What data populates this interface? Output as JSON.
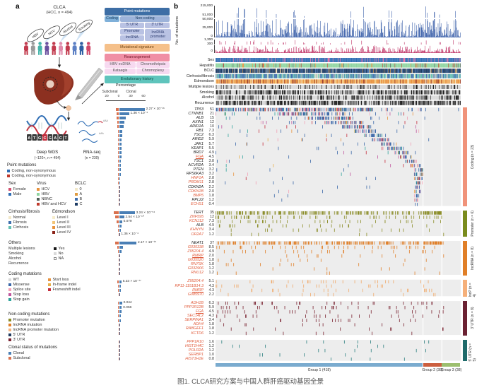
{
  "panel_a": {
    "label": "a",
    "cohort_title": "CLCA",
    "cohort_subtitle": "(HCC, n = 494)",
    "etiologies": [
      "HBV",
      "HCV",
      "Alcohol",
      "Smoking"
    ],
    "people_colors": [
      "#c23b4e",
      "#9a9a9a",
      "#45b5aa",
      "#6a4f9e",
      "#c23b4e",
      "#e08bab",
      "#c23b4e",
      "#5b7fc4",
      "#2e5fa3",
      "#d0486a"
    ],
    "dna_bases": [
      "A",
      "T",
      "G",
      "C",
      "G",
      "A",
      "C",
      "T"
    ],
    "assays": {
      "wgs_label": "Deep WGS",
      "wgs_sub": "(~120×, n = 494)",
      "rna_label": "RNA-seq",
      "rna_sub": "(n = 239)"
    },
    "pipeline": {
      "point_mutations_title": "Point mutations",
      "coding": "Coding",
      "noncoding": "Non-coding",
      "utr5": "5' UTR",
      "utr3": "3' UTR",
      "promoter": "Promoter",
      "lncrna": "lncRNA",
      "lncrna_promoter": "lncRNA promoter",
      "signature": "Mutational signature",
      "rearrangement": "Rearrangement",
      "rearr_items": [
        "HBV ecDNA",
        "Chromothripsis",
        "Kataegis",
        "Chromoplexy"
      ],
      "evolution": "Evolutionary history"
    }
  },
  "legends": {
    "point_mutations": {
      "title": "Point mutations",
      "items": [
        {
          "label": "Coding, non-synonymous",
          "color": "#2e6db4"
        },
        {
          "label": "Coding, non-synonymous",
          "color": "#c0392b"
        }
      ]
    },
    "sex": {
      "title": "Sex",
      "items": [
        {
          "label": "Female",
          "color": "#d34f6e"
        },
        {
          "label": "Male",
          "color": "#2e6db4"
        }
      ]
    },
    "virus": {
      "title": "Virus",
      "items": [
        {
          "label": "HCV",
          "color": "#e8923d"
        },
        {
          "label": "HBV",
          "color": "#8fd4a0"
        },
        {
          "label": "NBNC",
          "color": "#4f5d57"
        },
        {
          "label": "HBV and HCV",
          "color": "#c0392b"
        }
      ]
    },
    "bclc": {
      "title": "BCLC",
      "items": [
        {
          "label": "0",
          "color": "#f2e8c9"
        },
        {
          "label": "A",
          "color": "#df9b3f"
        },
        {
          "label": "B",
          "color": "#3f6fae"
        },
        {
          "label": "C",
          "color": "#1b3a63"
        }
      ]
    },
    "cirrhosis": {
      "title": "Cirrhosis/fibrosis",
      "items": [
        {
          "label": "Normal",
          "color": "#f2e8c9"
        },
        {
          "label": "Fibrosis",
          "color": "#3f6fae"
        },
        {
          "label": "Cirrhosis",
          "color": "#64c0b2"
        }
      ]
    },
    "edmondson": {
      "title": "Edmondson",
      "items": [
        {
          "label": "Level I",
          "color": "#f5eccb"
        },
        {
          "label": "Level II",
          "color": "#f3c577"
        },
        {
          "label": "Level III",
          "color": "#e8923d"
        },
        {
          "label": "Level IV",
          "color": "#8c2318"
        }
      ]
    },
    "others": {
      "title": "Others",
      "rows": [
        "Multiple lesions",
        "Smoking",
        "Alcohol",
        "Recurrence"
      ],
      "values": [
        {
          "label": "Yes",
          "color": "#1a1a1a"
        },
        {
          "label": "No",
          "color": "#d9d9d9"
        },
        {
          "label": "NA",
          "color": "#ffffff"
        }
      ]
    },
    "coding_mutations": {
      "title": "Coding mutations",
      "col1": [
        {
          "label": "WT",
          "color": "#d9d9d9"
        },
        {
          "label": "Missense",
          "color": "#3a67a8"
        },
        {
          "label": "Splice site",
          "color": "#f2a0b5"
        },
        {
          "label": "Stop loss",
          "color": "#c0569e"
        },
        {
          "label": "Stop gain",
          "color": "#2fa39b"
        }
      ],
      "col2": [
        {
          "label": "Start loss",
          "color": "#e8923d"
        },
        {
          "label": "In-frame indel",
          "color": "#e8b04a"
        },
        {
          "label": "Frameshift indel",
          "color": "#c42d3c"
        }
      ]
    },
    "noncoding_mutations": {
      "title": "Non-coding mutations",
      "items": [
        {
          "label": "Promoter mutation",
          "color": "#8a8c26"
        },
        {
          "label": "lncRNA mutation",
          "color": "#e07f28"
        },
        {
          "label": "lncRNA promoter mutation",
          "color": "#f2b380"
        },
        {
          "label": "5' UTR",
          "color": "#1f3a5f"
        },
        {
          "label": "3' UTR",
          "color": "#7a2230"
        }
      ]
    },
    "clonal_status": {
      "title": "Clonal status of mutations",
      "items": [
        {
          "label": "Clonal",
          "color": "#4a7fb5"
        },
        {
          "label": "Subclonal",
          "color": "#d9714e"
        }
      ]
    }
  },
  "clonal_chart": {
    "title": "Percentage",
    "left_label": "Subclonal",
    "right_label": "Clonal",
    "ticks": [
      "20",
      "0",
      "30",
      "60"
    ],
    "clonal_color": "#4a7fb5",
    "subclonal_color": "#d9714e"
  },
  "panel_b": {
    "label": "b",
    "y_axis_title": "No. of mutations",
    "snv_axis": [
      "215,000",
      "51,000",
      "50,000",
      "25,000",
      "0"
    ],
    "indel_axis": [
      "1,300",
      "300",
      "0"
    ],
    "snv_color": "#2a52a2",
    "indel_color": "#b81d56",
    "n_samples": 494,
    "tracks": [
      {
        "label": "Sex",
        "palette": [
          [
            "#2e6db4",
            0.85
          ],
          [
            "#e86ca4",
            0.15
          ]
        ]
      },
      {
        "label": "Hepatitis",
        "palette": [
          [
            "#8fd4a0",
            0.86
          ],
          [
            "#e8923d",
            0.05
          ],
          [
            "#4f5d57",
            0.04
          ],
          [
            "#c0392b",
            0.05
          ]
        ]
      },
      {
        "label": "BCLC",
        "palette": [
          [
            "#1b3a63",
            0.68
          ],
          [
            "#3f6fae",
            0.14
          ],
          [
            "#df9b3f",
            0.09
          ],
          [
            "#f2e8c9",
            0.09
          ]
        ]
      },
      {
        "label": "Cirrhosis/fibrosis",
        "palette": [
          [
            "#64c0b2",
            0.42
          ],
          [
            "#3f6fae",
            0.44
          ],
          [
            "#f2e8c9",
            0.14
          ]
        ]
      },
      {
        "label": "Edmondson",
        "palette": [
          [
            "#f5eccb",
            0.05
          ],
          [
            "#f3c577",
            0.25
          ],
          [
            "#e8923d",
            0.58
          ],
          [
            "#8c2318",
            0.12
          ]
        ]
      },
      {
        "label": "Multiple lesions",
        "palette": [
          [
            "#1a1a1a",
            0.25
          ],
          [
            "#d9d9d9",
            0.75
          ]
        ]
      },
      {
        "label": "Smoking",
        "palette": [
          [
            "#1a1a1a",
            0.44
          ],
          [
            "#d9d9d9",
            0.56
          ]
        ]
      },
      {
        "label": "Alcohol",
        "palette": [
          [
            "#1a1a1a",
            0.34
          ],
          [
            "#d9d9d9",
            0.66
          ]
        ]
      },
      {
        "label": "Recurrence",
        "palette": [
          [
            "#1a1a1a",
            0.5
          ],
          [
            "#d9d9d9",
            0.5
          ]
        ]
      }
    ],
    "sections": [
      {
        "key": "coding",
        "label": "Coding (n = 23)",
        "bar_color": "#f0937a",
        "marks": [
          [
            "#3a67a8",
            0.56
          ],
          [
            "#c42d3c",
            0.12
          ],
          [
            "#f2a0b5",
            0.1
          ],
          [
            "#2fa39b",
            0.09
          ],
          [
            "#c0569e",
            0.05
          ],
          [
            "#e8923d",
            0.05
          ],
          [
            "#e8b04a",
            0.03
          ]
        ],
        "genes": [
          [
            "TP53",
            "51",
            0,
            0,
            62,
            5,
            "2.27 × 10⁻¹⁶"
          ],
          [
            "CTNNB1",
            "21",
            0,
            0,
            24,
            4,
            "1.36 × 10⁻⁴"
          ],
          [
            "ALB",
            "15",
            0,
            0,
            16,
            3,
            null
          ],
          [
            "AXIN1",
            "12",
            0,
            0,
            13,
            2,
            null
          ],
          [
            "ARID1A",
            "10",
            0,
            0,
            11,
            2,
            null
          ],
          [
            "RB1",
            "7.3",
            0,
            0,
            8,
            1.5,
            null
          ],
          [
            "TSC2",
            "6.3",
            0,
            0,
            7,
            1.5,
            null
          ],
          [
            "ARID2",
            "5.9",
            0,
            0,
            6.5,
            1,
            null
          ],
          [
            "JAK1",
            "5.7",
            0,
            0,
            6,
            1,
            null
          ],
          [
            "KEAP1",
            "5.5",
            0,
            0,
            6,
            1,
            null
          ],
          [
            "BRD7",
            "4.9",
            0,
            0,
            5,
            1,
            null
          ],
          [
            "FGA",
            "4.5",
            1,
            1,
            5,
            1.5,
            null
          ],
          [
            "TSC1",
            "3.8",
            0,
            0,
            4,
            1,
            null
          ],
          [
            "ACVR2A",
            "3.4",
            0,
            0,
            3.5,
            0.8,
            null
          ],
          [
            "PTEN",
            "3.2",
            0,
            0,
            3.5,
            0.8,
            null
          ],
          [
            "RPS6KA3",
            "3.2",
            0,
            0,
            3.5,
            0.8,
            null
          ],
          [
            "HNF1A",
            "2.8",
            1,
            0,
            3,
            0.8,
            null
          ],
          [
            "PRDM11",
            "2.8",
            1,
            0,
            3,
            0.6,
            null
          ],
          [
            "CDKN2A",
            "2.2",
            0,
            0,
            2.5,
            0.5,
            null
          ],
          [
            "CDKN1B",
            "2.0",
            1,
            0,
            2.2,
            0.5,
            null
          ],
          [
            "BMP5",
            "1.8",
            1,
            0,
            2,
            0.4,
            null
          ],
          [
            "RPL22",
            "1.2",
            0,
            0,
            1.4,
            0.3,
            null
          ],
          [
            "ECHS1",
            "0.4",
            1,
            0,
            0.6,
            0.2,
            null
          ]
        ]
      },
      {
        "key": "promoter",
        "label": "Promoter (n = 6)",
        "bar_color": "#7a8c1e",
        "marks": [
          [
            "#8a8c26",
            1
          ]
        ],
        "genes": [
          [
            "TERT",
            "35",
            0,
            0,
            38,
            8,
            "3.24 × 10⁻⁵⁴"
          ],
          [
            "ZNF595",
            "12",
            1,
            0,
            12,
            6,
            "2.54 × 10⁻¹⁰"
          ],
          [
            "KCNJ12",
            "7.3",
            1,
            0,
            7,
            3,
            "0.079"
          ],
          [
            "ALB",
            "4.9",
            0,
            0,
            5,
            1.2,
            null
          ],
          [
            "KHNYN",
            "3.4",
            1,
            0,
            3.5,
            1,
            null
          ],
          [
            "OR2A7",
            "1.2",
            1,
            0,
            1.5,
            0.5,
            "1.36 × 10⁻⁴"
          ]
        ]
      },
      {
        "key": "lncrna",
        "label": "lncRNA (n = 8)",
        "bar_color": "#e07f28",
        "marks": [
          [
            "#e07f28",
            1
          ]
        ],
        "genes": [
          [
            "NEAT1",
            "37",
            0,
            0,
            42,
            6,
            "2.17 × 10⁻¹⁶"
          ],
          [
            "G035338",
            "8.5",
            1,
            0,
            9,
            2,
            null
          ],
          [
            "Z95204.4",
            "4.9",
            1,
            0,
            5,
            1.2,
            null
          ],
          [
            "RMRP",
            "2.0",
            1,
            1,
            2.2,
            0.5,
            null
          ],
          [
            "G035520",
            "1.8",
            1,
            0,
            2,
            0.5,
            null
          ],
          [
            "RN7SK",
            "1.8",
            1,
            0,
            2,
            0.5,
            null
          ],
          [
            "G032906",
            "1.2",
            1,
            0,
            1.4,
            0.3,
            null
          ],
          [
            "RNU12",
            "1.2",
            1,
            0,
            1.4,
            0.3,
            null
          ]
        ]
      },
      {
        "key": "incp",
        "label": "IncP (n = 4)",
        "bar_color": "#f5b07a",
        "marks": [
          [
            "#f0a868",
            1
          ]
        ],
        "genes": [
          [
            "Z95204.4",
            "5.1",
            1,
            0,
            5.5,
            2.5,
            "5.33 × 10⁻¹⁷"
          ],
          [
            "RP11-1151B14.3",
            "4.3",
            1,
            0,
            4.5,
            1,
            null
          ],
          [
            "RMRP",
            "4.3",
            1,
            1,
            4.5,
            1,
            null
          ],
          [
            "G085970",
            "2.2",
            1,
            0,
            2.4,
            0.5,
            null
          ]
        ]
      },
      {
        "key": "utr3",
        "label": "3' UTR (n = 8)",
        "bar_color": "#6b2233",
        "marks": [
          [
            "#7a2230",
            1
          ]
        ],
        "genes": [
          [
            "ADH1B",
            "6.3",
            1,
            0,
            7,
            1,
            "0.044"
          ],
          [
            "PPP1R12B",
            "5.9",
            1,
            0,
            6.5,
            1,
            "0.056"
          ],
          [
            "FGA",
            "4.5",
            1,
            1,
            5,
            1,
            null
          ],
          [
            "SEC14L2",
            "4.3",
            1,
            0,
            4.5,
            1,
            null
          ],
          [
            "SERPINA1",
            "3.4",
            1,
            0,
            3.5,
            0.8,
            null
          ],
          [
            "ADH4",
            "1.8",
            1,
            0,
            2,
            0.4,
            null
          ],
          [
            "RABGEF1",
            "1.8",
            1,
            0,
            2,
            0.4,
            null
          ],
          [
            "KCTD6",
            "1.2",
            1,
            0,
            1.4,
            0.3,
            null
          ]
        ]
      },
      {
        "key": "utr5",
        "label": "5' UTR (n = 5)",
        "bar_color": "#1f6b6b",
        "marks": [
          [
            "#2a7f7f",
            1
          ]
        ],
        "genes": [
          [
            "PPP1R10",
            "1.6",
            1,
            0,
            1.8,
            0.4,
            null
          ],
          [
            "HIST1H4C",
            "1.2",
            1,
            0,
            1.4,
            0.3,
            null
          ],
          [
            "POLR2A",
            "1.2",
            1,
            0,
            1.4,
            0.3,
            null
          ],
          [
            "SERBP1",
            "1.0",
            1,
            0,
            1.2,
            0.2,
            null
          ],
          [
            "HIST1H1E",
            "0.8",
            1,
            0,
            1,
            0.2,
            null
          ]
        ]
      }
    ],
    "groups": [
      {
        "label": "Group 1 (418)",
        "n": 418,
        "color": "#7aabcf"
      },
      {
        "label": "Group 2 (38)",
        "n": 38,
        "color": "#cc5f3f"
      },
      {
        "label": "Group 3 (38)",
        "n": 38,
        "color": "#9cbf6e"
      }
    ]
  },
  "caption": "图1. CLCA研究方案与中国人群肝癌驱动基因全景"
}
